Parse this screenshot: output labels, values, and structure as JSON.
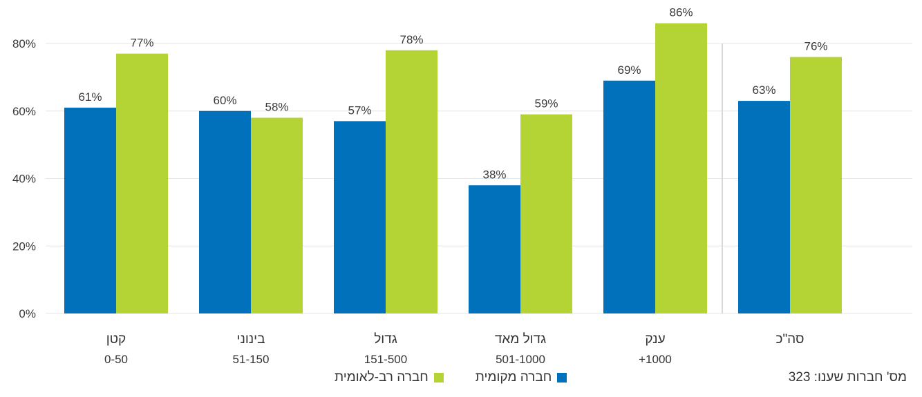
{
  "chart_data": {
    "type": "bar",
    "categories": [
      {
        "name": "קטן",
        "range": "0-50"
      },
      {
        "name": "בינוני",
        "range": "51-150"
      },
      {
        "name": "גדול",
        "range": "151-500"
      },
      {
        "name": "גדול מאד",
        "range": "501-1000"
      },
      {
        "name": "ענק",
        "range": "+1000"
      },
      {
        "name": "סה\"כ",
        "range": ""
      }
    ],
    "series": [
      {
        "name": "חברה מקומית",
        "color": "#0171bb",
        "values": [
          61,
          60,
          57,
          38,
          69,
          63
        ],
        "labels": [
          "61%",
          "60%",
          "57%",
          "38%",
          "69%",
          "63%"
        ]
      },
      {
        "name": "חברה רב-לאומית",
        "color": "#b4d334",
        "values": [
          77,
          58,
          78,
          59,
          86,
          76
        ],
        "labels": [
          "77%",
          "58%",
          "78%",
          "59%",
          "86%",
          "76%"
        ]
      }
    ],
    "ylim": [
      0,
      80
    ],
    "yticks": [
      0,
      20,
      40,
      60,
      80
    ],
    "ytick_labels": [
      "0%",
      "20%",
      "40%",
      "60%",
      "80%"
    ],
    "grid": true,
    "legend_position": "bottom-center"
  },
  "footnote": "מס' חברות שענו: 323"
}
